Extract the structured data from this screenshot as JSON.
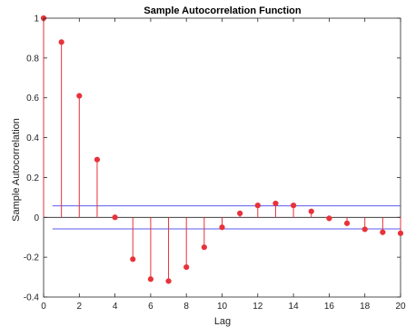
{
  "chart_data": {
    "type": "stem",
    "title": "Sample Autocorrelation Function",
    "xlabel": "Lag",
    "ylabel": "Sample Autocorrelation",
    "xlim": [
      0,
      20
    ],
    "ylim": [
      -0.4,
      1
    ],
    "xticks": [
      0,
      2,
      4,
      6,
      8,
      10,
      12,
      14,
      16,
      18,
      20
    ],
    "yticks": [
      -0.4,
      -0.2,
      0,
      0.2,
      0.4,
      0.6,
      0.8,
      1
    ],
    "grid": false,
    "series": [
      {
        "x": [
          0,
          1,
          2,
          3,
          4,
          5,
          6,
          7,
          8,
          9,
          10,
          11,
          12,
          13,
          14,
          15,
          16,
          17,
          18,
          19,
          20
        ],
        "values": [
          1.0,
          0.88,
          0.61,
          0.29,
          0.0,
          -0.21,
          -0.31,
          -0.32,
          -0.25,
          -0.15,
          -0.05,
          0.02,
          0.06,
          0.07,
          0.06,
          0.03,
          -0.005,
          -0.03,
          -0.06,
          -0.075,
          -0.08
        ],
        "color": "#e8323a",
        "marker": "filled-circle"
      }
    ],
    "confidence_bounds": {
      "values": [
        0.058,
        -0.058
      ],
      "color": "#5b5bf0"
    }
  }
}
